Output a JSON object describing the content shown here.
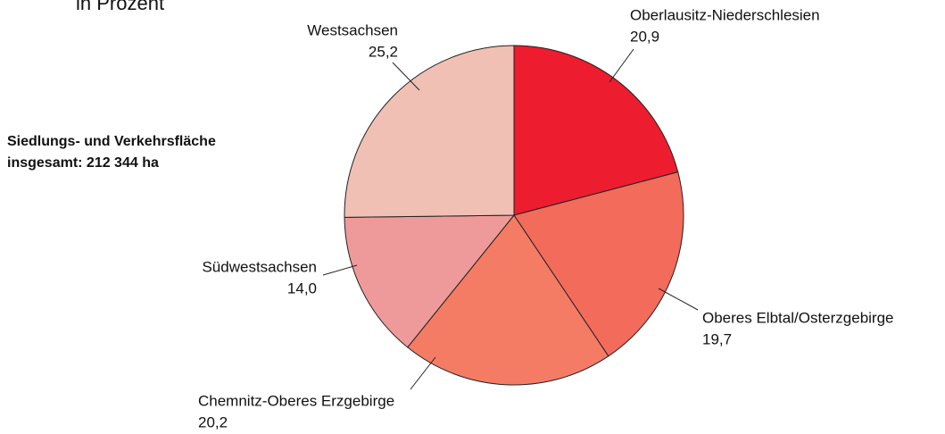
{
  "chart_data": {
    "type": "pie",
    "subtitle": "in Prozent",
    "annotation": [
      "Siedlungs- und Verkehrsfläche",
      "insgesamt:  212 344  ha"
    ],
    "categories": [
      "Oberlausitz-Niederschlesien",
      "Oberes Elbtal/Osterzgebirge",
      "Chemnitz-Oberes Erzgebirge",
      "Südwestsachsen",
      "Westsachsen"
    ],
    "values": [
      20.9,
      19.7,
      20.2,
      14.0,
      25.2
    ],
    "value_labels": [
      "20,9",
      "19,7",
      "20,2",
      "14,0",
      "25,2"
    ],
    "colors": [
      "#ed1c2e",
      "#f26b5b",
      "#f47c65",
      "#ef9a9a",
      "#f0c0b5"
    ]
  }
}
